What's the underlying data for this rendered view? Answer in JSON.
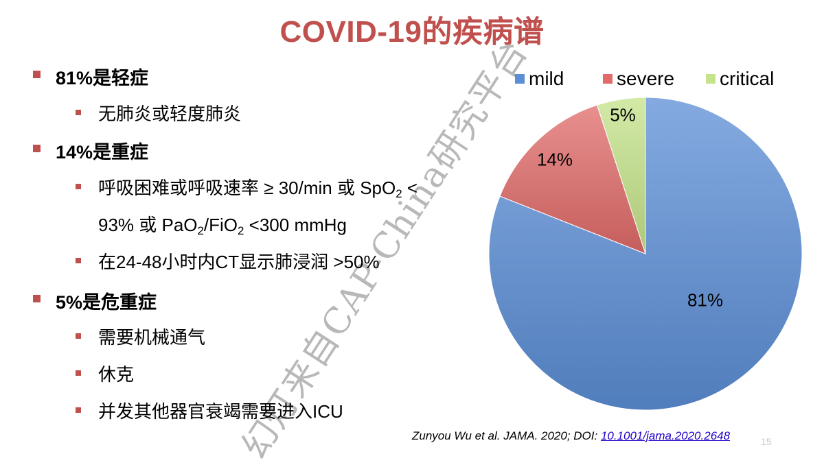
{
  "slide": {
    "title": "COVID-19的疾病谱",
    "page_number": "15",
    "watermark": "幻灯来自CAP-China研究平台"
  },
  "bullets": {
    "mild": {
      "heading": "81%是轻症",
      "items": [
        "无肺炎或轻度肺炎"
      ]
    },
    "severe": {
      "heading": "14%是重症",
      "criteria_line1_prefix": "呼吸困难或呼吸速率 ≥ 30/min 或 SpO",
      "criteria_line1_sub": "2",
      "criteria_line1_suffix": " <",
      "criteria_line2_a": "93% 或 PaO",
      "criteria_line2_sub1": "2",
      "criteria_line2_b": "/FiO",
      "criteria_line2_sub2": "2",
      "criteria_line2_c": " <300 mmHg",
      "ct_item": "在24-48小时内CT显示肺浸润 >50%"
    },
    "critical": {
      "heading": "5%是危重症",
      "items": [
        "需要机械通气",
        "休克",
        "并发其他器官衰竭需要进入ICU"
      ]
    }
  },
  "citation": {
    "text": "Zunyou Wu et al. JAMA. 2020; DOI: ",
    "doi": "10.1001/jama.2020.2648"
  },
  "chart_data": {
    "type": "pie",
    "categories": [
      "mild",
      "severe",
      "critical"
    ],
    "values": [
      81,
      14,
      5
    ],
    "labels": [
      "81%",
      "14%",
      "5%"
    ],
    "colors": [
      "#5b8ed6",
      "#e06b69",
      "#c4e38a"
    ],
    "legend_position": "top",
    "start": "12 o'clock, clockwise"
  }
}
